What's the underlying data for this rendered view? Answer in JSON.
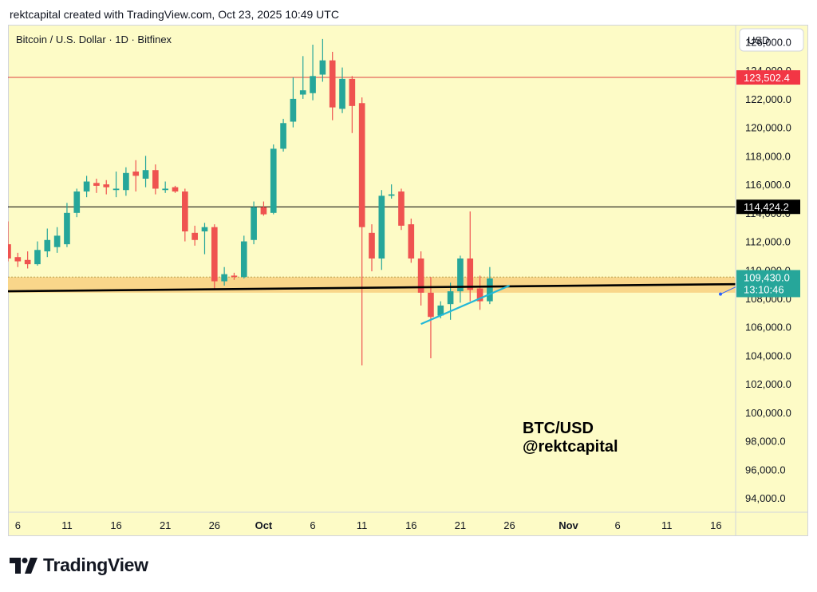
{
  "header": {
    "text": "rektcapital created with TradingView.com, Oct 23, 2025 10:49 UTC"
  },
  "footer": {
    "brand": "TradingView"
  },
  "colors": {
    "background": "#fdfbc6",
    "bull": "#26a69a",
    "bear": "#ef5350",
    "support_zone": "#f9d68a",
    "resistance_line": "#e04040",
    "trendline": "#22b8d8",
    "price_tag": "#26a69a",
    "resistance_tag": "#f23645",
    "level_tag": "#000000"
  },
  "chart_data": {
    "type": "candlestick",
    "symbol": "Bitcoin / U.S. Dollar · 1D · Bitfinex",
    "currency": "USD",
    "watermark": [
      "BTC/USD",
      "@rektcapital"
    ],
    "y_range": [
      93000,
      127200
    ],
    "y_ticks": [
      94000,
      96000,
      98000,
      100000,
      102000,
      104000,
      106000,
      108000,
      110000,
      112000,
      114000,
      116000,
      118000,
      120000,
      122000,
      124000,
      126000
    ],
    "y_tick_labels": [
      "94,000.0",
      "96,000.0",
      "98,000.0",
      "100,000.0",
      "102,000.0",
      "104,000.0",
      "106,000.0",
      "108,000.0",
      "110,000.0",
      "112,000.0",
      "114,000.0",
      "116,000.0",
      "118,000.0",
      "120,000.0",
      "122,000.0",
      "124,000.0",
      "126,000.0"
    ],
    "x_range": [
      "2025-09-05",
      "2025-11-18"
    ],
    "x_ticks": [
      {
        "date": "2025-09-06",
        "label": "6"
      },
      {
        "date": "2025-09-11",
        "label": "11"
      },
      {
        "date": "2025-09-16",
        "label": "16"
      },
      {
        "date": "2025-09-21",
        "label": "21"
      },
      {
        "date": "2025-09-26",
        "label": "26"
      },
      {
        "date": "2025-10-01",
        "label": "Oct"
      },
      {
        "date": "2025-10-06",
        "label": "6"
      },
      {
        "date": "2025-10-11",
        "label": "11"
      },
      {
        "date": "2025-10-16",
        "label": "16"
      },
      {
        "date": "2025-10-21",
        "label": "21"
      },
      {
        "date": "2025-10-26",
        "label": "26"
      },
      {
        "date": "2025-11-01",
        "label": "Nov"
      },
      {
        "date": "2025-11-06",
        "label": "6"
      },
      {
        "date": "2025-11-11",
        "label": "11"
      },
      {
        "date": "2025-11-16",
        "label": "16"
      }
    ],
    "candles": [
      {
        "date": "2025-09-05",
        "o": 111800,
        "h": 113400,
        "l": 110600,
        "c": 110800
      },
      {
        "date": "2025-09-06",
        "o": 110900,
        "h": 111200,
        "l": 110200,
        "c": 110600
      },
      {
        "date": "2025-09-07",
        "o": 110700,
        "h": 111300,
        "l": 110100,
        "c": 110400
      },
      {
        "date": "2025-09-08",
        "o": 110400,
        "h": 112000,
        "l": 110300,
        "c": 111400
      },
      {
        "date": "2025-09-09",
        "o": 111300,
        "h": 112900,
        "l": 110900,
        "c": 112100
      },
      {
        "date": "2025-09-10",
        "o": 111600,
        "h": 113000,
        "l": 111200,
        "c": 112400
      },
      {
        "date": "2025-09-11",
        "o": 111800,
        "h": 114700,
        "l": 111600,
        "c": 114000
      },
      {
        "date": "2025-09-12",
        "o": 114000,
        "h": 115700,
        "l": 113700,
        "c": 115500
      },
      {
        "date": "2025-09-13",
        "o": 115500,
        "h": 116600,
        "l": 115100,
        "c": 116200
      },
      {
        "date": "2025-09-14",
        "o": 116100,
        "h": 116400,
        "l": 115400,
        "c": 115900
      },
      {
        "date": "2025-09-15",
        "o": 116000,
        "h": 116300,
        "l": 115300,
        "c": 115800
      },
      {
        "date": "2025-09-16",
        "o": 115600,
        "h": 116900,
        "l": 115100,
        "c": 115700
      },
      {
        "date": "2025-09-17",
        "o": 115600,
        "h": 117200,
        "l": 115200,
        "c": 116800
      },
      {
        "date": "2025-09-18",
        "o": 116900,
        "h": 117700,
        "l": 115500,
        "c": 116600
      },
      {
        "date": "2025-09-19",
        "o": 116400,
        "h": 118000,
        "l": 115800,
        "c": 117000
      },
      {
        "date": "2025-09-20",
        "o": 117000,
        "h": 117400,
        "l": 115300,
        "c": 115700
      },
      {
        "date": "2025-09-21",
        "o": 115600,
        "h": 116200,
        "l": 115400,
        "c": 115700
      },
      {
        "date": "2025-09-22",
        "o": 115800,
        "h": 115900,
        "l": 115400,
        "c": 115500
      },
      {
        "date": "2025-09-23",
        "o": 115500,
        "h": 115700,
        "l": 112000,
        "c": 112700
      },
      {
        "date": "2025-09-24",
        "o": 112600,
        "h": 113100,
        "l": 111700,
        "c": 112100
      },
      {
        "date": "2025-09-25",
        "o": 112700,
        "h": 113300,
        "l": 111100,
        "c": 113000
      },
      {
        "date": "2025-09-26",
        "o": 113000,
        "h": 113200,
        "l": 108700,
        "c": 109200
      },
      {
        "date": "2025-09-27",
        "o": 109200,
        "h": 110200,
        "l": 108900,
        "c": 109700
      },
      {
        "date": "2025-09-28",
        "o": 109600,
        "h": 109800,
        "l": 109300,
        "c": 109500
      },
      {
        "date": "2025-09-29",
        "o": 109500,
        "h": 112400,
        "l": 109400,
        "c": 112000
      },
      {
        "date": "2025-09-30",
        "o": 112100,
        "h": 114800,
        "l": 111800,
        "c": 114400
      },
      {
        "date": "2025-10-01",
        "o": 114400,
        "h": 114800,
        "l": 113800,
        "c": 113900
      },
      {
        "date": "2025-10-02",
        "o": 114000,
        "h": 118800,
        "l": 113900,
        "c": 118500
      },
      {
        "date": "2025-10-03",
        "o": 118500,
        "h": 120600,
        "l": 118300,
        "c": 120300
      },
      {
        "date": "2025-10-04",
        "o": 120400,
        "h": 123500,
        "l": 120000,
        "c": 122000
      },
      {
        "date": "2025-10-05",
        "o": 122300,
        "h": 125000,
        "l": 122000,
        "c": 122600
      },
      {
        "date": "2025-10-06",
        "o": 122400,
        "h": 125800,
        "l": 121900,
        "c": 123600
      },
      {
        "date": "2025-10-07",
        "o": 123700,
        "h": 126200,
        "l": 123200,
        "c": 124700
      },
      {
        "date": "2025-10-08",
        "o": 124700,
        "h": 125300,
        "l": 120500,
        "c": 121400
      },
      {
        "date": "2025-10-09",
        "o": 121300,
        "h": 124200,
        "l": 121000,
        "c": 123400
      },
      {
        "date": "2025-10-10",
        "o": 123400,
        "h": 123600,
        "l": 119600,
        "c": 121500
      },
      {
        "date": "2025-10-11",
        "o": 121700,
        "h": 122100,
        "l": 103300,
        "c": 113000
      },
      {
        "date": "2025-10-12",
        "o": 112600,
        "h": 113200,
        "l": 109900,
        "c": 110800
      },
      {
        "date": "2025-10-13",
        "o": 110800,
        "h": 115600,
        "l": 110000,
        "c": 115200
      },
      {
        "date": "2025-10-14",
        "o": 115200,
        "h": 116000,
        "l": 115000,
        "c": 115300
      },
      {
        "date": "2025-10-15",
        "o": 115500,
        "h": 115700,
        "l": 112800,
        "c": 113100
      },
      {
        "date": "2025-10-16",
        "o": 113200,
        "h": 113600,
        "l": 110500,
        "c": 110800
      },
      {
        "date": "2025-10-17",
        "o": 110800,
        "h": 111300,
        "l": 107500,
        "c": 108400
      },
      {
        "date": "2025-10-18",
        "o": 108400,
        "h": 109500,
        "l": 103800,
        "c": 106700
      },
      {
        "date": "2025-10-19",
        "o": 106800,
        "h": 107800,
        "l": 106600,
        "c": 107500
      },
      {
        "date": "2025-10-20",
        "o": 107600,
        "h": 109100,
        "l": 106500,
        "c": 108500
      },
      {
        "date": "2025-10-21",
        "o": 108500,
        "h": 111000,
        "l": 107700,
        "c": 110800
      },
      {
        "date": "2025-10-22",
        "o": 110800,
        "h": 114100,
        "l": 107800,
        "c": 108600
      },
      {
        "date": "2025-10-23",
        "o": 108700,
        "h": 109600,
        "l": 107200,
        "c": 107800
      },
      {
        "date": "2025-10-24",
        "o": 107800,
        "h": 110200,
        "l": 107600,
        "c": 109400
      }
    ],
    "horizontal_lines": [
      {
        "price": 123502.4,
        "label": "123,502.4",
        "kind": "resistance"
      },
      {
        "price": 114424.2,
        "label": "114,424.2",
        "kind": "level"
      }
    ],
    "support_zone": {
      "top": 109500,
      "bottom": 108400
    },
    "support_line": {
      "start": {
        "date": "2025-09-05",
        "price": 108500
      },
      "end": {
        "date": "2025-11-18",
        "price": 109000
      }
    },
    "trendline": {
      "start": {
        "date": "2025-10-17",
        "price": 106200
      },
      "end": {
        "date": "2025-10-26",
        "price": 108900
      }
    },
    "last_price": {
      "label": "109,430.0",
      "countdown": "13:10:46",
      "price": 109430
    }
  }
}
